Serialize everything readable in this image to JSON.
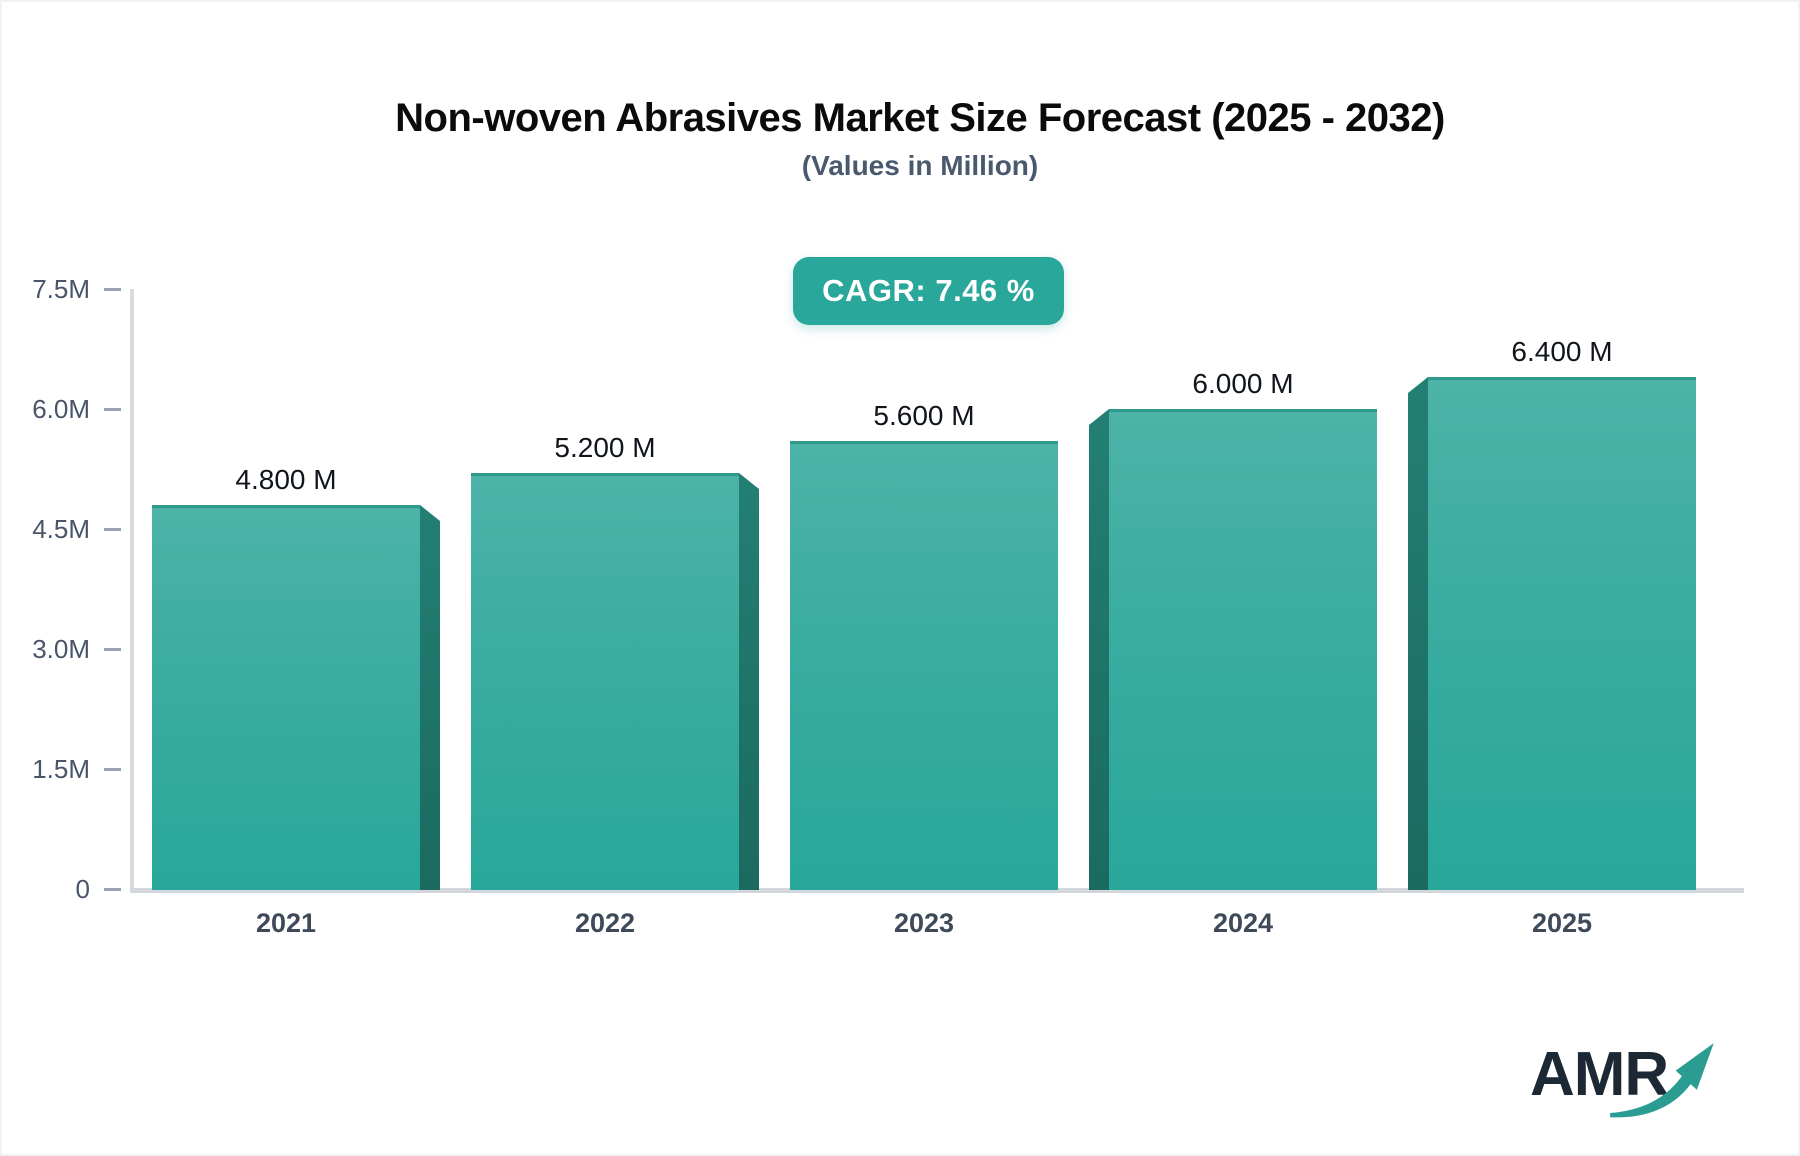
{
  "header": {
    "title": "Non-woven Abrasives Market Size Forecast (2025 - 2032)",
    "subtitle": "(Values in Million)",
    "cagr_badge": "CAGR: 7.46 %"
  },
  "logo": {
    "text": "AMR",
    "arrow_icon": "growth-arrow-icon"
  },
  "colors": {
    "accent_teal": "#2aa79b",
    "bar_face_top": "#4db3a9",
    "bar_face_bottom": "#28a79a",
    "bar_top_edge": "#2f998c",
    "bar_side_top": "#237f74",
    "bar_side_bottom": "#1b6a60",
    "axis_line": "#d6d9dd",
    "tick_text": "#4a5568",
    "x_label_text": "#3e4959",
    "value_label_text": "#10151c",
    "logo_text": "#1c2833",
    "logo_arrow": "#2b9c91"
  },
  "chart_data": {
    "type": "bar",
    "title": "Non-woven Abrasives Market Size Forecast (2025 - 2032)",
    "subtitle": "(Values in Million)",
    "unit": "Million",
    "cagr_percent": 7.46,
    "categories": [
      "2021",
      "2022",
      "2023",
      "2024",
      "2025"
    ],
    "values": [
      4.8,
      5.2,
      5.6,
      6.0,
      6.4
    ],
    "value_labels": [
      "4.800 M",
      "5.200 M",
      "5.600 M",
      "6.000 M",
      "6.400 M"
    ],
    "ylim": [
      0,
      7.5
    ],
    "yticks": [
      {
        "value": 0,
        "label": "0"
      },
      {
        "value": 1.5,
        "label": "1.5M"
      },
      {
        "value": 3.0,
        "label": "3.0M"
      },
      {
        "value": 4.5,
        "label": "4.5M"
      },
      {
        "value": 6.0,
        "label": "6.0M"
      },
      {
        "value": 7.5,
        "label": "7.5M"
      }
    ],
    "xlabel": "",
    "ylabel": "",
    "grid": false,
    "legend_position": "none",
    "bar_style": "3d-perspective-teal-gradient"
  }
}
